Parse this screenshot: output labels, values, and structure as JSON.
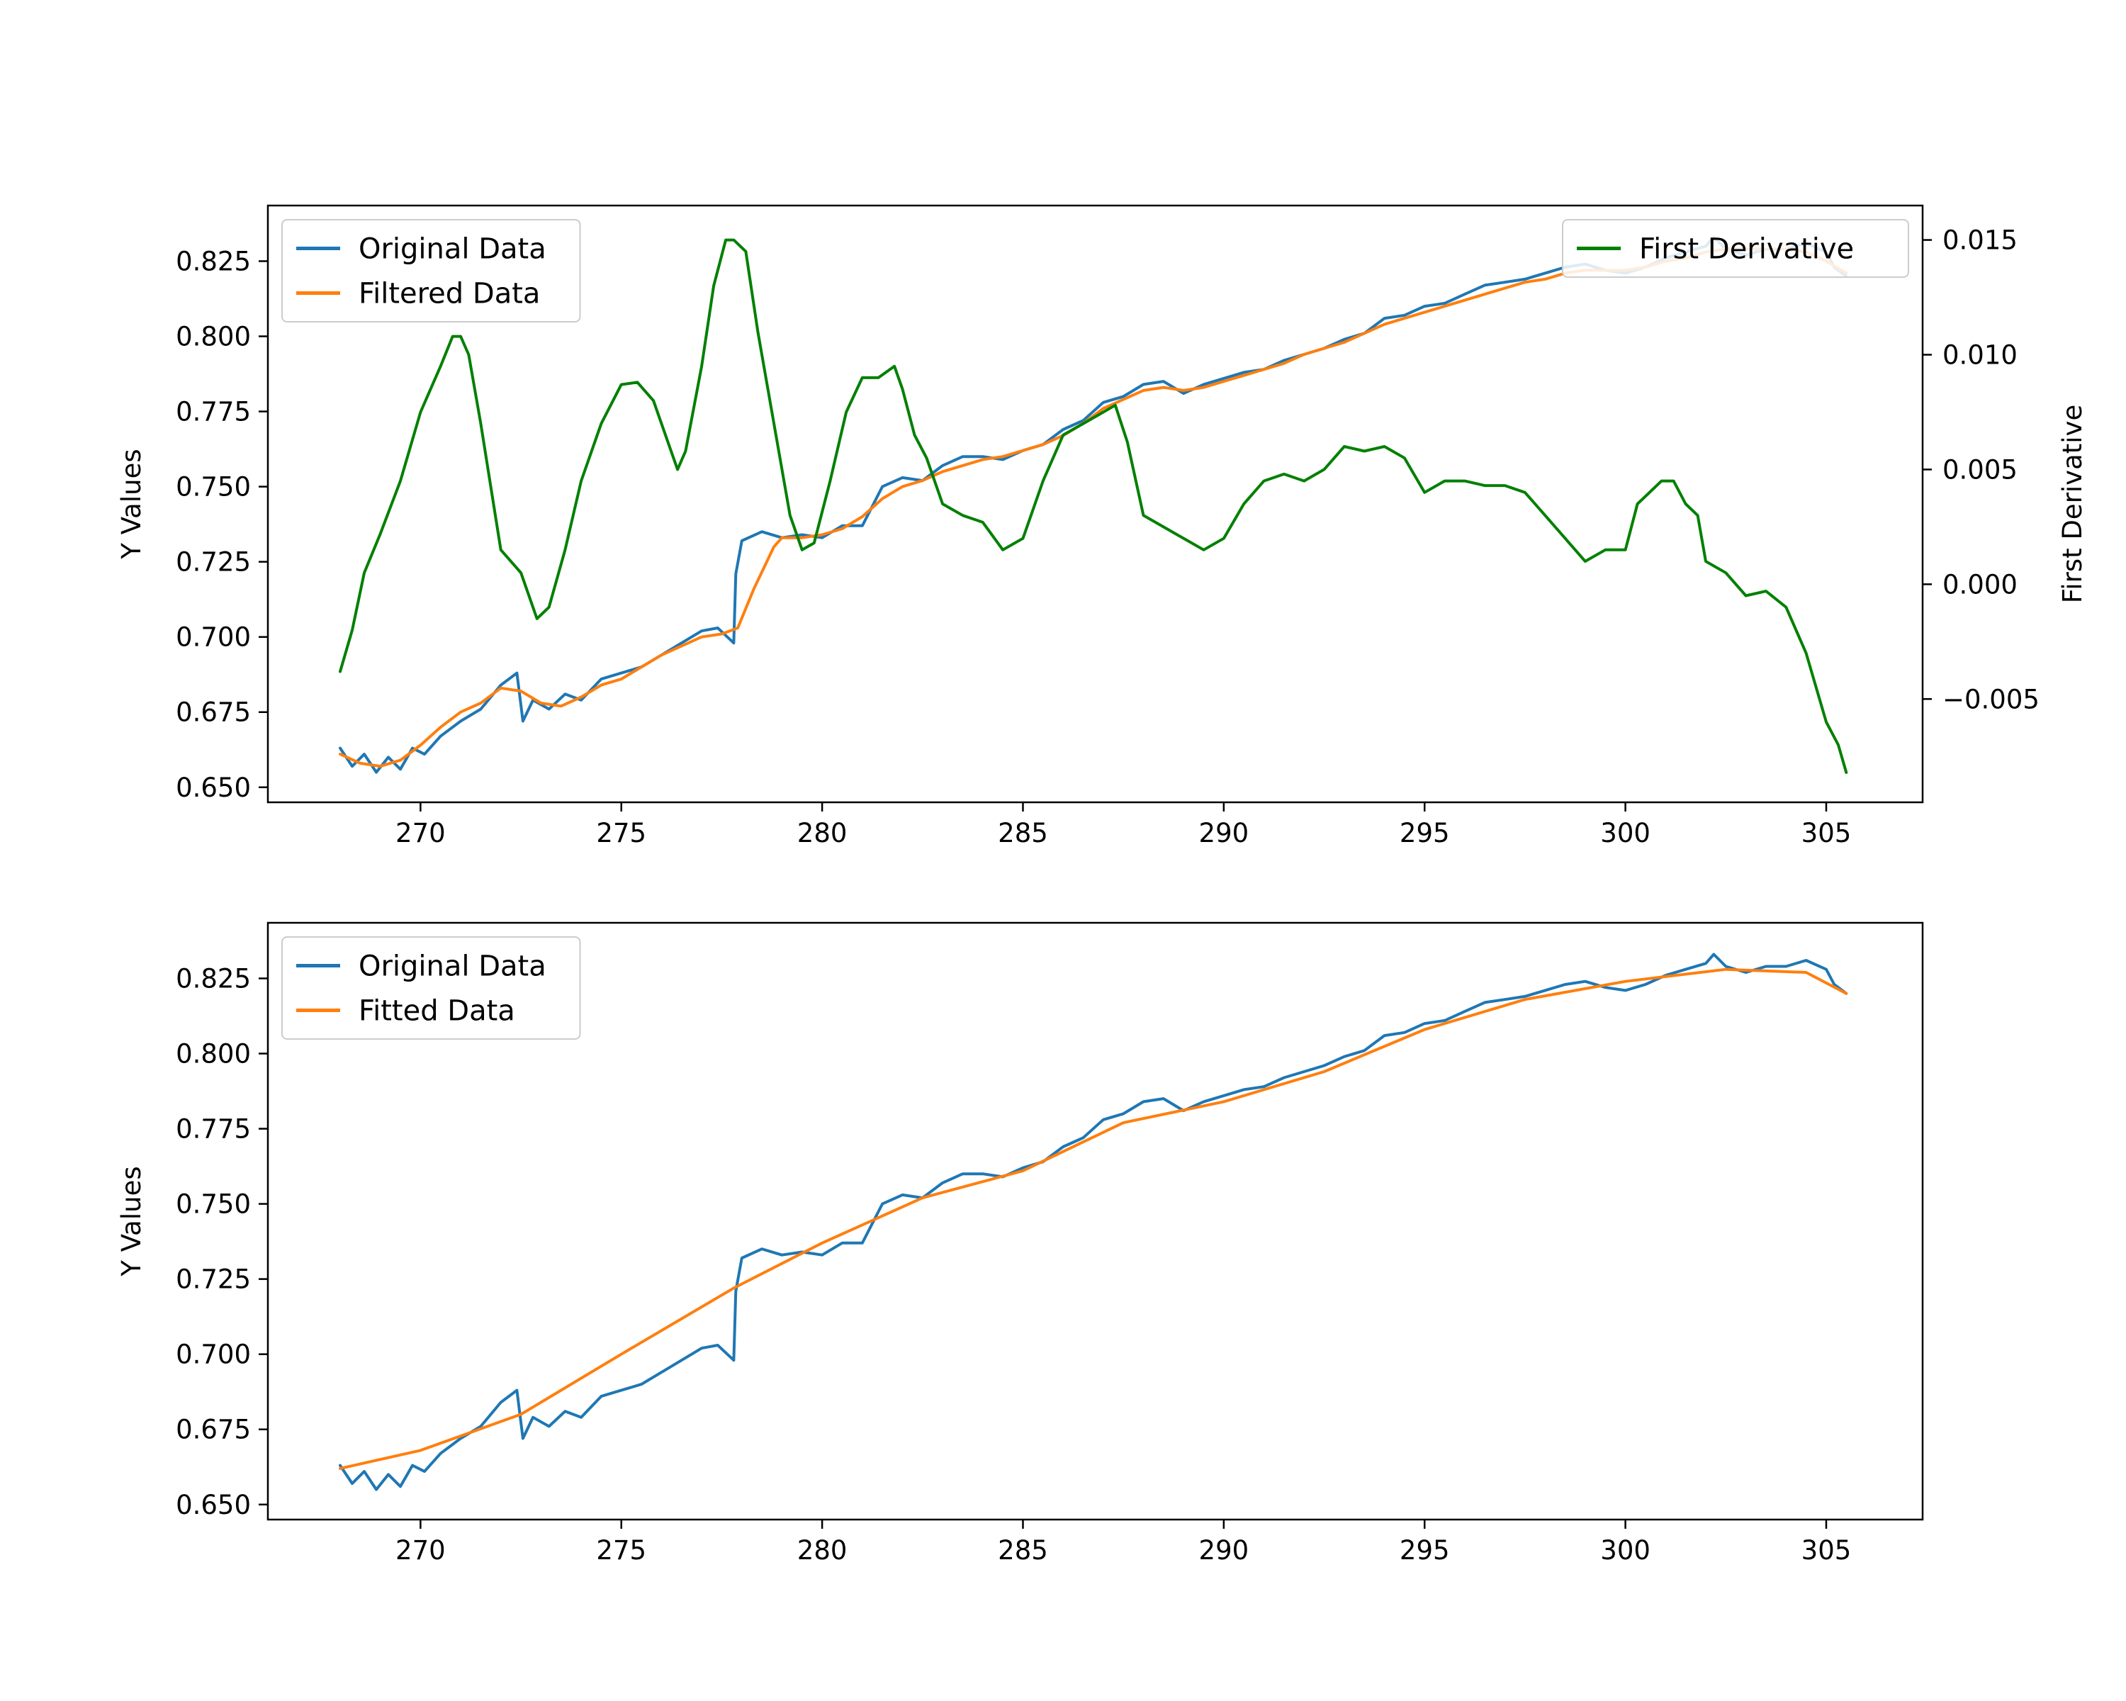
{
  "chart_data": [
    {
      "type": "line",
      "xlim": [
        266.2,
        307.4
      ],
      "ylim": [
        0.645,
        0.8435
      ],
      "y2lim": [
        -0.0095,
        0.0165
      ],
      "ylabel": "Y Values",
      "y2label": "First Derivative",
      "xticks": [
        270,
        275,
        280,
        285,
        290,
        295,
        300,
        305
      ],
      "yticks": [
        0.65,
        0.675,
        0.7,
        0.725,
        0.75,
        0.775,
        0.8,
        0.825
      ],
      "yticklabels": [
        "0.650",
        "0.675",
        "0.700",
        "0.725",
        "0.750",
        "0.775",
        "0.800",
        "0.825"
      ],
      "y2ticks": [
        -0.005,
        0.0,
        0.005,
        0.01,
        0.015
      ],
      "y2ticklabels": [
        "−0.005",
        "0.000",
        "0.005",
        "0.010",
        "0.015"
      ],
      "legend_left": {
        "placement": "upper-left",
        "entries": [
          "Original Data",
          "Filtered Data"
        ]
      },
      "legend_right": {
        "placement": "upper-right",
        "entries": [
          "First Derivative"
        ]
      },
      "series": [
        {
          "name": "Original Data",
          "color": "#1f77b4",
          "axis": "left",
          "x": [
            268.0,
            268.3,
            268.6,
            268.9,
            269.2,
            269.5,
            269.8,
            270.1,
            270.5,
            271.0,
            271.5,
            272.0,
            272.4,
            272.55,
            272.8,
            273.2,
            273.6,
            274.0,
            274.5,
            275.0,
            275.5,
            276.0,
            276.5,
            277.0,
            277.4,
            277.8,
            277.85,
            278.0,
            278.5,
            279.0,
            279.5,
            280.0,
            280.5,
            281.0,
            281.5,
            282.0,
            282.5,
            283.0,
            283.5,
            284.0,
            284.5,
            285.0,
            285.5,
            286.0,
            286.5,
            287.0,
            287.5,
            288.0,
            288.5,
            289.0,
            289.5,
            290.0,
            290.5,
            291.0,
            291.5,
            292.0,
            292.5,
            293.0,
            293.5,
            294.0,
            294.5,
            295.0,
            295.5,
            296.0,
            296.5,
            297.0,
            297.5,
            298.0,
            298.5,
            299.0,
            299.5,
            300.0,
            300.5,
            301.0,
            301.5,
            302.0,
            302.2,
            302.5,
            303.0,
            303.5,
            304.0,
            304.5,
            305.0,
            305.2,
            305.5
          ],
          "y": [
            0.663,
            0.657,
            0.661,
            0.655,
            0.66,
            0.656,
            0.663,
            0.661,
            0.667,
            0.672,
            0.676,
            0.684,
            0.688,
            0.672,
            0.679,
            0.676,
            0.681,
            0.679,
            0.686,
            0.688,
            0.69,
            0.694,
            0.698,
            0.702,
            0.703,
            0.698,
            0.721,
            0.732,
            0.735,
            0.733,
            0.734,
            0.733,
            0.737,
            0.737,
            0.75,
            0.753,
            0.752,
            0.757,
            0.76,
            0.76,
            0.759,
            0.762,
            0.764,
            0.769,
            0.772,
            0.778,
            0.78,
            0.784,
            0.785,
            0.781,
            0.784,
            0.786,
            0.788,
            0.789,
            0.792,
            0.794,
            0.796,
            0.799,
            0.801,
            0.806,
            0.807,
            0.81,
            0.811,
            0.814,
            0.817,
            0.818,
            0.819,
            0.821,
            0.823,
            0.824,
            0.822,
            0.821,
            0.823,
            0.826,
            0.828,
            0.83,
            0.833,
            0.829,
            0.827,
            0.829,
            0.829,
            0.831,
            0.828,
            0.823,
            0.82
          ]
        },
        {
          "name": "Filtered Data",
          "color": "#ff7f0e",
          "axis": "left",
          "x": [
            268.0,
            268.5,
            269.0,
            269.5,
            270.0,
            270.5,
            271.0,
            271.5,
            272.0,
            272.5,
            273.0,
            273.5,
            274.0,
            274.5,
            275.0,
            275.5,
            276.0,
            276.5,
            277.0,
            277.5,
            277.9,
            278.3,
            278.8,
            279.0,
            279.5,
            280.0,
            280.5,
            281.0,
            281.5,
            282.0,
            282.5,
            283.0,
            283.5,
            284.0,
            284.5,
            285.0,
            285.5,
            286.0,
            286.5,
            287.0,
            287.5,
            288.0,
            288.5,
            289.0,
            289.5,
            290.0,
            290.5,
            291.0,
            291.5,
            292.0,
            292.5,
            293.0,
            293.5,
            294.0,
            294.5,
            295.0,
            295.5,
            296.0,
            296.5,
            297.0,
            297.5,
            298.0,
            298.5,
            299.0,
            299.5,
            300.0,
            300.5,
            301.0,
            301.5,
            302.0,
            302.5,
            303.0,
            303.5,
            304.0,
            304.5,
            305.0,
            305.5
          ],
          "y": [
            0.661,
            0.658,
            0.657,
            0.659,
            0.664,
            0.67,
            0.675,
            0.678,
            0.683,
            0.682,
            0.678,
            0.677,
            0.68,
            0.684,
            0.686,
            0.69,
            0.694,
            0.697,
            0.7,
            0.701,
            0.703,
            0.716,
            0.73,
            0.733,
            0.733,
            0.734,
            0.736,
            0.74,
            0.746,
            0.75,
            0.752,
            0.755,
            0.757,
            0.759,
            0.76,
            0.762,
            0.764,
            0.767,
            0.771,
            0.776,
            0.779,
            0.782,
            0.783,
            0.782,
            0.783,
            0.785,
            0.787,
            0.789,
            0.791,
            0.794,
            0.796,
            0.798,
            0.801,
            0.804,
            0.806,
            0.808,
            0.81,
            0.812,
            0.814,
            0.816,
            0.818,
            0.819,
            0.821,
            0.822,
            0.822,
            0.822,
            0.823,
            0.825,
            0.826,
            0.828,
            0.829,
            0.829,
            0.829,
            0.829,
            0.828,
            0.825,
            0.821
          ]
        },
        {
          "name": "First Derivative",
          "color": "#008000",
          "axis": "right",
          "x": [
            268.0,
            268.3,
            268.6,
            269.0,
            269.5,
            270.0,
            270.5,
            270.8,
            271.0,
            271.2,
            271.5,
            272.0,
            272.5,
            272.9,
            273.2,
            273.6,
            274.0,
            274.5,
            275.0,
            275.4,
            275.8,
            276.2,
            276.4,
            276.6,
            277.0,
            277.3,
            277.6,
            277.8,
            278.1,
            278.4,
            278.8,
            279.2,
            279.5,
            279.8,
            280.2,
            280.6,
            281.0,
            281.4,
            281.8,
            282.0,
            282.3,
            282.6,
            283.0,
            283.5,
            284.0,
            284.5,
            285.0,
            285.5,
            286.0,
            286.5,
            287.0,
            287.3,
            287.6,
            288.0,
            288.5,
            289.0,
            289.5,
            290.0,
            290.5,
            291.0,
            291.5,
            292.0,
            292.5,
            293.0,
            293.5,
            294.0,
            294.5,
            295.0,
            295.5,
            296.0,
            296.5,
            297.0,
            297.5,
            298.0,
            298.5,
            299.0,
            299.5,
            300.0,
            300.3,
            300.6,
            300.9,
            301.2,
            301.5,
            301.8,
            302.0,
            302.5,
            303.0,
            303.5,
            304.0,
            304.5,
            305.0,
            305.3,
            305.5
          ],
          "y": [
            -0.0038,
            -0.002,
            0.0005,
            0.0022,
            0.0045,
            0.0075,
            0.0095,
            0.0108,
            0.0108,
            0.01,
            0.007,
            0.0015,
            0.0005,
            -0.0015,
            -0.001,
            0.0015,
            0.0045,
            0.007,
            0.0087,
            0.0088,
            0.008,
            0.006,
            0.005,
            0.0058,
            0.0095,
            0.013,
            0.015,
            0.015,
            0.0145,
            0.011,
            0.007,
            0.003,
            0.0015,
            0.0018,
            0.0045,
            0.0075,
            0.009,
            0.009,
            0.0095,
            0.0085,
            0.0065,
            0.0055,
            0.0035,
            0.003,
            0.0027,
            0.0015,
            0.002,
            0.0045,
            0.0065,
            0.007,
            0.0075,
            0.0078,
            0.0062,
            0.003,
            0.0025,
            0.002,
            0.0015,
            0.002,
            0.0035,
            0.0045,
            0.0048,
            0.0045,
            0.005,
            0.006,
            0.0058,
            0.006,
            0.0055,
            0.004,
            0.0045,
            0.0045,
            0.0043,
            0.0043,
            0.004,
            0.003,
            0.002,
            0.001,
            0.0015,
            0.0015,
            0.0035,
            0.004,
            0.0045,
            0.0045,
            0.0035,
            0.003,
            0.001,
            0.0005,
            -0.0005,
            -0.0003,
            -0.001,
            -0.003,
            -0.006,
            -0.007,
            -0.0082
          ]
        }
      ]
    },
    {
      "type": "line",
      "xlim": [
        266.2,
        307.4
      ],
      "ylim": [
        0.645,
        0.8435
      ],
      "ylabel": "Y Values",
      "xticks": [
        270,
        275,
        280,
        285,
        290,
        295,
        300,
        305
      ],
      "yticks": [
        0.65,
        0.675,
        0.7,
        0.725,
        0.75,
        0.775,
        0.8,
        0.825
      ],
      "yticklabels": [
        "0.650",
        "0.675",
        "0.700",
        "0.725",
        "0.750",
        "0.775",
        "0.800",
        "0.825"
      ],
      "legend": {
        "placement": "upper-left",
        "entries": [
          "Original Data",
          "Fitted Data"
        ]
      },
      "series": [
        {
          "name": "Original Data",
          "color": "#1f77b4",
          "axis": "left",
          "same_as": "chart0.Original Data"
        },
        {
          "name": "Fitted Data",
          "color": "#ff7f0e",
          "axis": "left",
          "x": [
            268.0,
            270.0,
            272.5,
            275.0,
            277.8,
            280.0,
            282.5,
            285.0,
            287.5,
            290.0,
            292.5,
            295.0,
            297.5,
            300.0,
            302.5,
            304.5,
            305.5
          ],
          "y": [
            0.662,
            0.668,
            0.68,
            0.7,
            0.722,
            0.737,
            0.752,
            0.761,
            0.777,
            0.784,
            0.794,
            0.808,
            0.818,
            0.824,
            0.828,
            0.827,
            0.82
          ]
        }
      ]
    }
  ]
}
